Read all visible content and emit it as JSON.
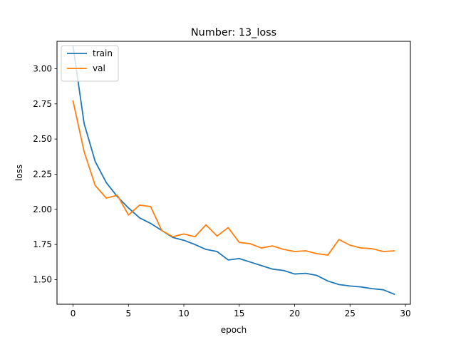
{
  "chart_data": {
    "type": "line",
    "title": "Number: 13_loss",
    "xlabel": "epoch",
    "ylabel": "loss",
    "xlim": [
      -1.45,
      30.45
    ],
    "ylim": [
      1.325,
      3.195
    ],
    "xticks": [
      0,
      5,
      10,
      15,
      20,
      25,
      30
    ],
    "yticks": [
      1.5,
      1.75,
      2.0,
      2.25,
      2.5,
      2.75,
      3.0
    ],
    "xtick_labels": [
      "0",
      "5",
      "10",
      "15",
      "20",
      "25",
      "30"
    ],
    "ytick_labels": [
      "1.50",
      "1.75",
      "2.00",
      "2.25",
      "2.50",
      "2.75",
      "3.00"
    ],
    "grid": false,
    "legend_position": "top-left",
    "x": [
      0,
      1,
      2,
      3,
      4,
      5,
      6,
      7,
      8,
      9,
      10,
      11,
      12,
      13,
      14,
      15,
      16,
      17,
      18,
      19,
      20,
      21,
      22,
      23,
      24,
      25,
      26,
      27,
      28,
      29
    ],
    "series": [
      {
        "name": "train",
        "color": "#1f77b4",
        "values": [
          3.16,
          2.61,
          2.34,
          2.19,
          2.09,
          2.01,
          1.94,
          1.9,
          1.85,
          1.8,
          1.78,
          1.75,
          1.715,
          1.7,
          1.64,
          1.65,
          1.625,
          1.6,
          1.575,
          1.565,
          1.54,
          1.545,
          1.53,
          1.49,
          1.465,
          1.455,
          1.448,
          1.436,
          1.428,
          1.396
        ]
      },
      {
        "name": "val",
        "color": "#ff7f0e",
        "values": [
          2.77,
          2.41,
          2.17,
          2.08,
          2.1,
          1.96,
          2.03,
          2.02,
          1.85,
          1.805,
          1.825,
          1.805,
          1.89,
          1.81,
          1.87,
          1.765,
          1.755,
          1.725,
          1.74,
          1.715,
          1.7,
          1.705,
          1.685,
          1.675,
          1.785,
          1.745,
          1.725,
          1.72,
          1.7,
          1.705
        ]
      }
    ]
  }
}
